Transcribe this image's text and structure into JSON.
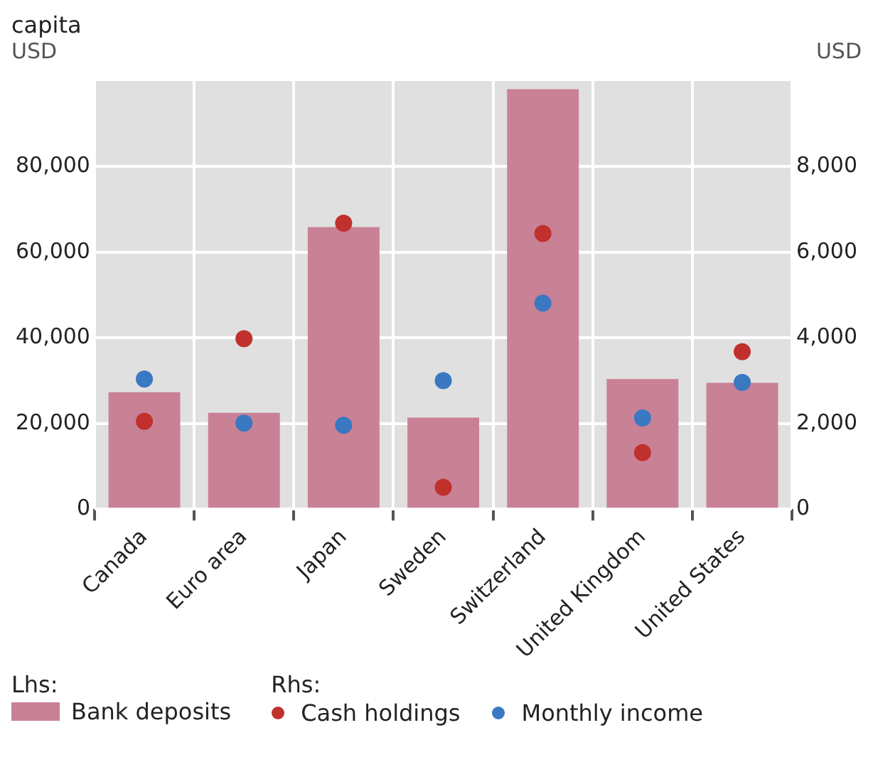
{
  "chart_data": {
    "type": "bar",
    "title": "capita",
    "ylabel": "USD",
    "y2label": "USD",
    "categories": [
      "Canada",
      "Euro area",
      "Japan",
      "Sweden",
      "Switzerland",
      "United Kingdom",
      "United States"
    ],
    "series": [
      {
        "name": "Bank deposits",
        "color": "#c98196",
        "values": [
          27300,
          22500,
          65900,
          21400,
          98100,
          30400,
          29500
        ]
      },
      {
        "name": "Cash holdings",
        "type": "scatter",
        "axis": "y2",
        "color": "#c0302d",
        "values": [
          2050,
          3980,
          6680,
          510,
          6440,
          1320,
          3680
        ]
      },
      {
        "name": "Monthly income",
        "type": "scatter",
        "axis": "y2",
        "color": "#3a78c2",
        "values": [
          3040,
          2010,
          1960,
          3000,
          4810,
          2130,
          2960
        ]
      }
    ],
    "ylim": [
      0,
      100000
    ],
    "yticks": [
      0,
      {
        "value": 20000,
        "label": "20,000"
      },
      {
        "value": 40000,
        "label": "40,000"
      },
      {
        "value": 60000,
        "label": "60,000"
      },
      {
        "value": 80000,
        "label": "80,000"
      }
    ],
    "y2lim": [
      0,
      10000
    ],
    "y2ticks": [
      0,
      {
        "value": 2000,
        "label": "2,000"
      },
      {
        "value": 4000,
        "label": "4,000"
      },
      {
        "value": 6000,
        "label": "6,000"
      },
      {
        "value": 8000,
        "label": "8,000"
      }
    ],
    "grid": true,
    "legend": "bottom",
    "marker": "circle",
    "annotations": [
      "Lhs:",
      "Rhs:"
    ]
  }
}
